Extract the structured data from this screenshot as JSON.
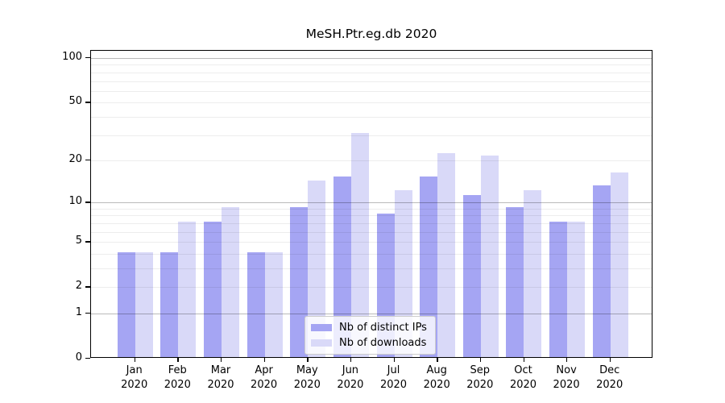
{
  "chart_data": {
    "type": "bar",
    "title": "MeSH.Ptr.eg.db 2020",
    "categories": [
      "Jan 2020",
      "Feb 2020",
      "Mar 2020",
      "Apr 2020",
      "May 2020",
      "Jun 2020",
      "Jul 2020",
      "Aug 2020",
      "Sep 2020",
      "Oct 2020",
      "Nov 2020",
      "Dec 2020"
    ],
    "series": [
      {
        "name": "Nb of distinct IPs",
        "color": "#a5a5f3",
        "values": [
          4,
          4,
          7,
          4,
          9,
          15,
          8,
          15,
          11,
          9,
          7,
          13
        ]
      },
      {
        "name": "Nb of downloads",
        "color": "#d9d9f8",
        "values": [
          4,
          7,
          9,
          4,
          14,
          30,
          12,
          22,
          21,
          12,
          7,
          16
        ]
      }
    ],
    "xlabel": "",
    "ylabel": "",
    "yscale": "log1p",
    "ylim": [
      0,
      112
    ],
    "y_tick_labels": [
      "100",
      "50",
      "20",
      "10",
      "5",
      "2",
      "1",
      "0"
    ],
    "y_tick_values": [
      100,
      50,
      20,
      10,
      5,
      2,
      1,
      0
    ],
    "y_major_gridlines": [
      1,
      10,
      100
    ],
    "y_minor_gridlines": [
      2,
      3,
      4,
      5,
      6,
      7,
      8,
      9,
      20,
      30,
      40,
      50,
      60,
      70,
      80,
      90
    ],
    "grid": true,
    "legend_position": "bottom-center",
    "colors": {
      "bar_dark": "#a5a5f3",
      "bar_light": "#d9d9f8",
      "axis": "#000000",
      "legend_border": "#cccccc"
    }
  }
}
